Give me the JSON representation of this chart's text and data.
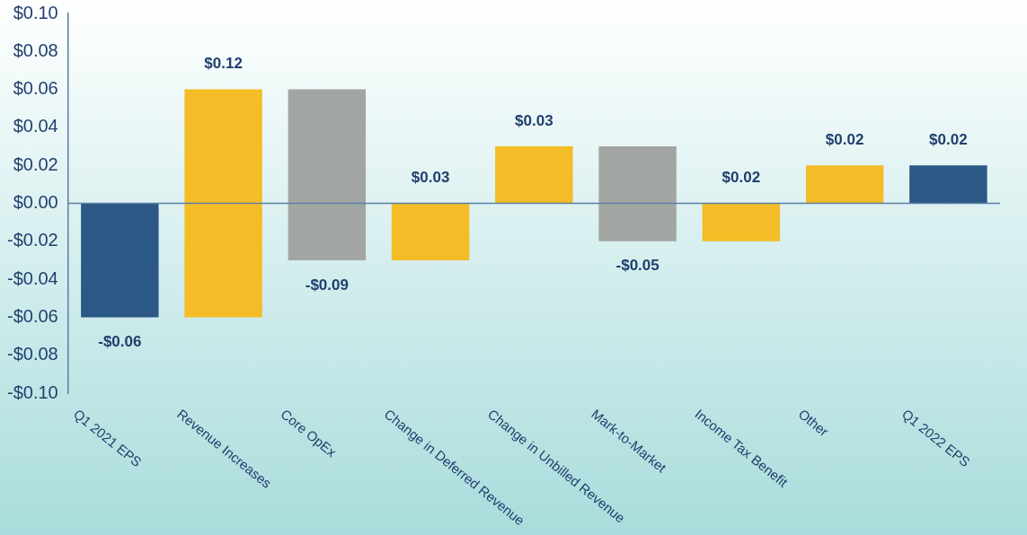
{
  "chart_data": {
    "type": "bar",
    "categories": [
      "Q1 2021 EPS",
      "Revenue Increases",
      "Core OpEx",
      "Change in Deferred Revenue",
      "Change in Unbilled Revenue",
      "Mark-to-Market",
      "Income Tax Benefit",
      "Other",
      "Q1 2022 EPS"
    ],
    "values": [
      -0.06,
      0.12,
      -0.09,
      0.03,
      0.03,
      -0.05,
      0.02,
      0.02,
      0.02
    ],
    "base": [
      0,
      -0.06,
      0.06,
      -0.03,
      0,
      0.03,
      -0.02,
      0,
      0
    ],
    "colors": [
      "#2b5885",
      "#f4bc26",
      "#a2a6a2",
      "#f4bc26",
      "#f4bc26",
      "#a2a6a2",
      "#f4bc26",
      "#f4bc26",
      "#2b5885"
    ],
    "value_labels": [
      "-$0.06",
      "$0.12",
      "-$0.09",
      "$0.03",
      "$0.03",
      "-$0.05",
      "$0.02",
      "$0.02",
      "$0.02"
    ],
    "ylim": [
      -0.1,
      0.1
    ],
    "yticks": [
      {
        "value": -0.1,
        "label": "-$0.10"
      },
      {
        "value": -0.08,
        "label": "-$0.08"
      },
      {
        "value": -0.06,
        "label": "-$0.06"
      },
      {
        "value": -0.04,
        "label": "-$0.04"
      },
      {
        "value": -0.02,
        "label": "-$0.02"
      },
      {
        "value": 0,
        "label": "$0.00"
      },
      {
        "value": 0.02,
        "label": "$0.02"
      },
      {
        "value": 0.04,
        "label": "$0.04"
      },
      {
        "value": 0.06,
        "label": "$0.06"
      },
      {
        "value": 0.08,
        "label": "$0.08"
      },
      {
        "value": 0.1,
        "label": "$0.10"
      }
    ],
    "ref_lines": [
      {
        "axis": "y",
        "value": 0,
        "color": "#5b7fa6"
      }
    ],
    "grid": false,
    "legend": false
  }
}
